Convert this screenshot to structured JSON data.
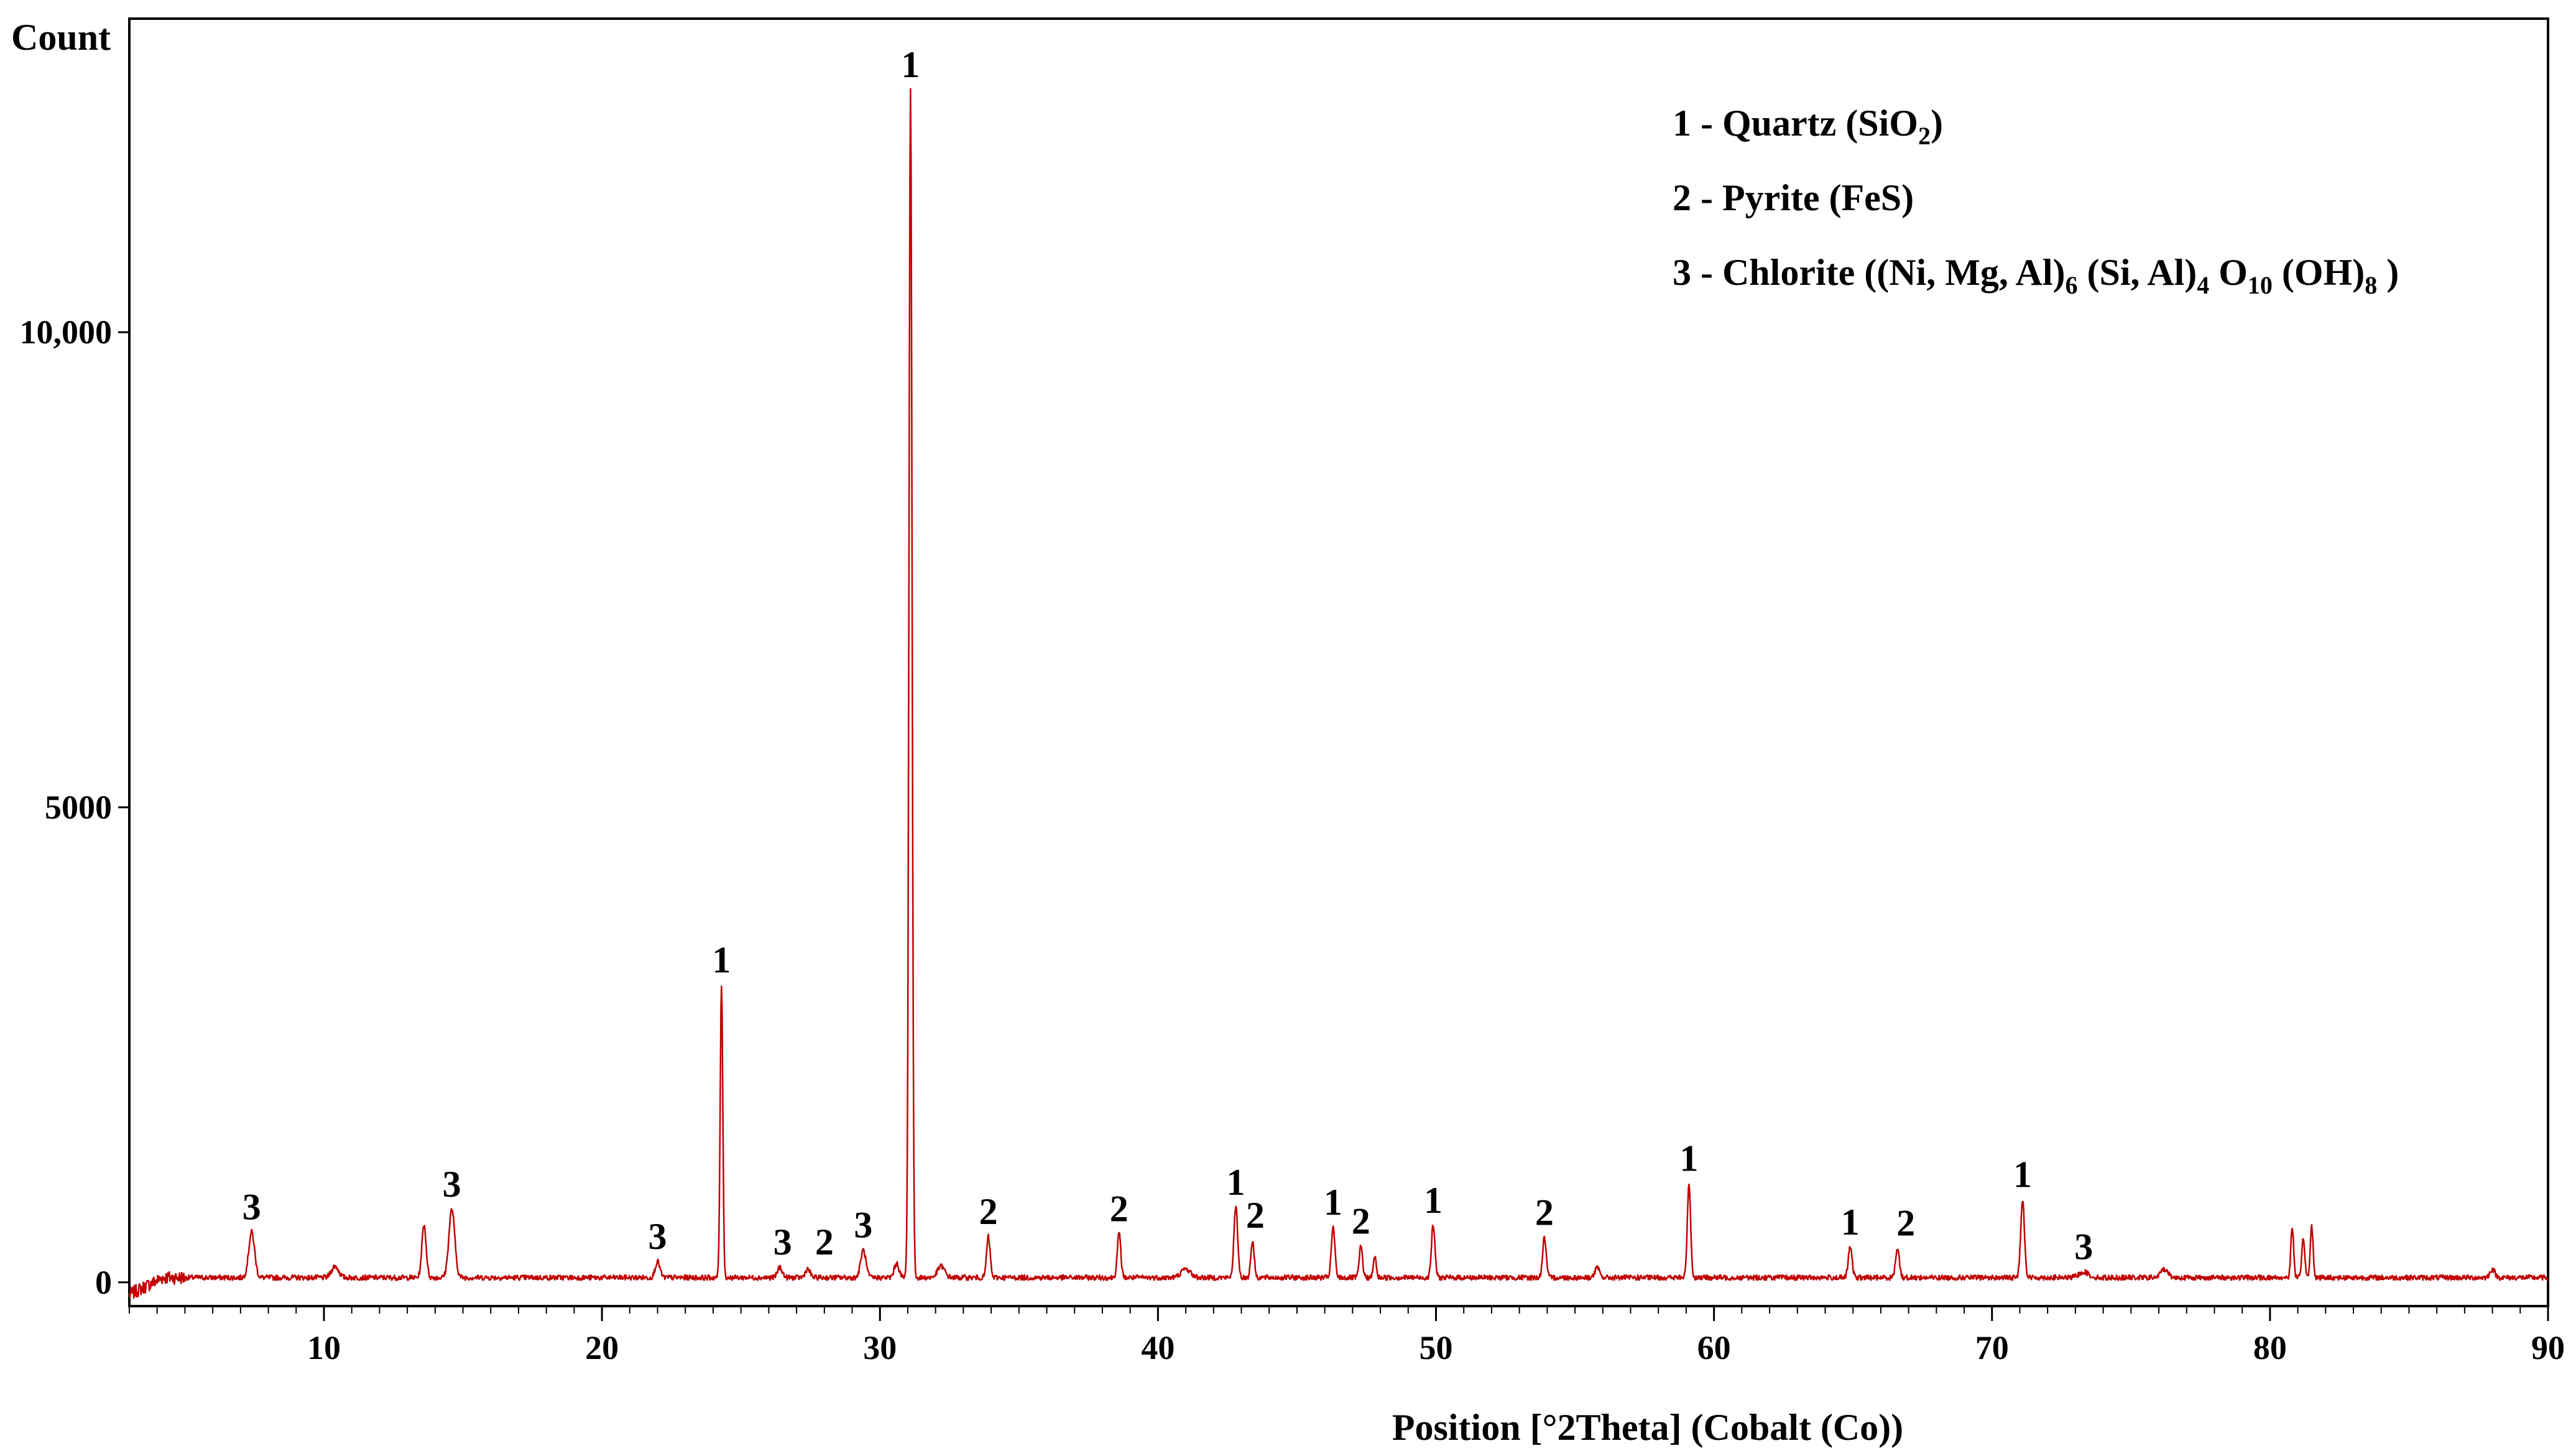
{
  "chart_data": {
    "type": "line",
    "title": "",
    "xlabel": "Position [°2Theta] (Cobalt (Co))",
    "ylabel": "Count",
    "xlim": [
      3,
      90
    ],
    "ylim": [
      -250,
      13300
    ],
    "grid": false,
    "x_ticks": [
      10,
      20,
      30,
      40,
      50,
      60,
      70,
      80,
      90
    ],
    "x_tick_labels": [
      "10",
      "20",
      "30",
      "40",
      "50",
      "60",
      "70",
      "80",
      "90"
    ],
    "y_ticks": [
      0,
      5000,
      10000
    ],
    "y_tick_labels": [
      "0",
      "5000",
      "10,000"
    ],
    "series_color": "#c00000",
    "baseline": 50,
    "peaks": [
      {
        "x": 7.4,
        "y": 480,
        "w": 0.25
      },
      {
        "x": 10.4,
        "y": 120,
        "w": 0.3
      },
      {
        "x": 13.6,
        "y": 560,
        "w": 0.18
      },
      {
        "x": 14.6,
        "y": 720,
        "w": 0.25
      },
      {
        "x": 22.0,
        "y": 170,
        "w": 0.2
      },
      {
        "x": 24.3,
        "y": 3080,
        "w": 0.11
      },
      {
        "x": 26.4,
        "y": 110,
        "w": 0.2
      },
      {
        "x": 27.4,
        "y": 90,
        "w": 0.2
      },
      {
        "x": 29.4,
        "y": 290,
        "w": 0.22
      },
      {
        "x": 30.6,
        "y": 150,
        "w": 0.2
      },
      {
        "x": 31.1,
        "y": 12500,
        "w": 0.13
      },
      {
        "x": 32.2,
        "y": 120,
        "w": 0.3
      },
      {
        "x": 33.9,
        "y": 430,
        "w": 0.15
      },
      {
        "x": 38.6,
        "y": 460,
        "w": 0.15
      },
      {
        "x": 41.0,
        "y": 90,
        "w": 0.4
      },
      {
        "x": 42.8,
        "y": 740,
        "w": 0.16
      },
      {
        "x": 43.4,
        "y": 390,
        "w": 0.14
      },
      {
        "x": 46.3,
        "y": 530,
        "w": 0.15
      },
      {
        "x": 47.3,
        "y": 330,
        "w": 0.14
      },
      {
        "x": 47.8,
        "y": 220,
        "w": 0.12
      },
      {
        "x": 49.9,
        "y": 550,
        "w": 0.15
      },
      {
        "x": 53.9,
        "y": 420,
        "w": 0.15
      },
      {
        "x": 55.8,
        "y": 100,
        "w": 0.2
      },
      {
        "x": 59.1,
        "y": 990,
        "w": 0.14
      },
      {
        "x": 64.9,
        "y": 320,
        "w": 0.16
      },
      {
        "x": 66.6,
        "y": 310,
        "w": 0.16
      },
      {
        "x": 71.1,
        "y": 820,
        "w": 0.16
      },
      {
        "x": 73.3,
        "y": 60,
        "w": 0.4
      },
      {
        "x": 76.2,
        "y": 90,
        "w": 0.3
      },
      {
        "x": 80.8,
        "y": 530,
        "w": 0.12
      },
      {
        "x": 81.2,
        "y": 420,
        "w": 0.12
      },
      {
        "x": 81.5,
        "y": 540,
        "w": 0.12
      },
      {
        "x": 88.0,
        "y": 90,
        "w": 0.2
      }
    ],
    "peak_labels": [
      {
        "text": "3",
        "x": 7.4,
        "y": 480
      },
      {
        "text": "3",
        "x": 14.6,
        "y": 720
      },
      {
        "text": "3",
        "x": 22.0,
        "y": 170
      },
      {
        "text": "1",
        "x": 24.3,
        "y": 3080
      },
      {
        "text": "3",
        "x": 26.5,
        "y": 110
      },
      {
        "text": "2",
        "x": 28.0,
        "y": 110
      },
      {
        "text": "3",
        "x": 29.4,
        "y": 290
      },
      {
        "text": "1",
        "x": 31.1,
        "y": 12500
      },
      {
        "text": "2",
        "x": 33.9,
        "y": 430
      },
      {
        "text": "2",
        "x": 38.6,
        "y": 460
      },
      {
        "text": "1",
        "x": 42.8,
        "y": 740
      },
      {
        "text": "2",
        "x": 43.5,
        "y": 390
      },
      {
        "text": "1",
        "x": 46.3,
        "y": 530
      },
      {
        "text": "2",
        "x": 47.3,
        "y": 330
      },
      {
        "text": "1",
        "x": 49.9,
        "y": 550
      },
      {
        "text": "2",
        "x": 53.9,
        "y": 420
      },
      {
        "text": "1",
        "x": 59.1,
        "y": 990
      },
      {
        "text": "1",
        "x": 64.9,
        "y": 320
      },
      {
        "text": "2",
        "x": 66.9,
        "y": 310
      },
      {
        "text": "1",
        "x": 71.1,
        "y": 820
      },
      {
        "text": "3",
        "x": 73.3,
        "y": 60
      }
    ],
    "legend_placement": "top-right",
    "legend": [
      {
        "parts": [
          {
            "t": "1 - Quartz (SiO"
          },
          {
            "t": "2",
            "sub": true
          },
          {
            "t": ")"
          }
        ]
      },
      {
        "parts": [
          {
            "t": "2 - Pyrite (FeS)"
          }
        ]
      },
      {
        "parts": [
          {
            "t": "3 - Chlorite ((Ni, Mg, Al)"
          },
          {
            "t": "6",
            "sub": true
          },
          {
            "t": " (Si, Al)"
          },
          {
            "t": "4",
            "sub": true
          },
          {
            "t": " O"
          },
          {
            "t": "10",
            "sub": true
          },
          {
            "t": " (OH)"
          },
          {
            "t": "8",
            "sub": true
          },
          {
            "t": " )"
          }
        ]
      }
    ]
  }
}
